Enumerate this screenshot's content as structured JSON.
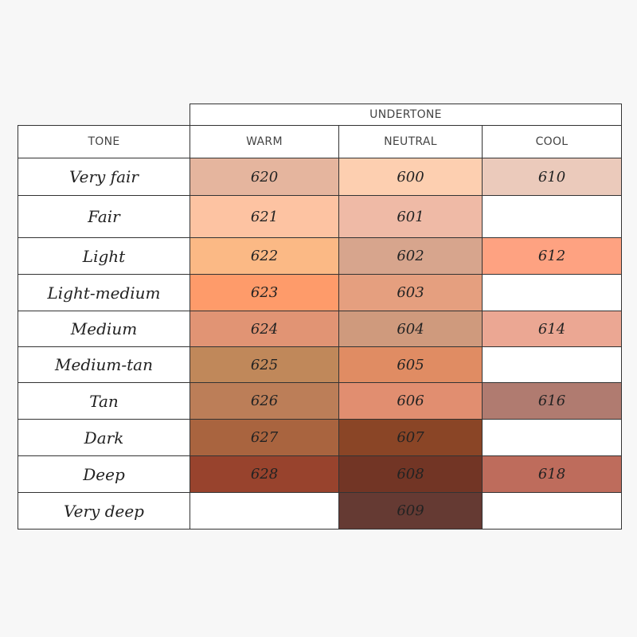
{
  "table": {
    "group_header": "UNDERTONE",
    "columns": [
      "TONE",
      "WARM",
      "NEUTRAL",
      "COOL"
    ],
    "rows": [
      {
        "tone": "Very fair",
        "cells": [
          {
            "code": "620",
            "color": "#e5b59e"
          },
          {
            "code": "600",
            "color": "#fdcfb0"
          },
          {
            "code": "610",
            "color": "#ebcabb"
          }
        ]
      },
      {
        "tone": "Fair",
        "cells": [
          {
            "code": "621",
            "color": "#fdc3a2"
          },
          {
            "code": "601",
            "color": "#efbaa6"
          },
          null
        ]
      },
      {
        "tone": "Light",
        "cells": [
          {
            "code": "622",
            "color": "#fbb985"
          },
          {
            "code": "602",
            "color": "#d7a58d"
          },
          {
            "code": "612",
            "color": "#fea281"
          }
        ]
      },
      {
        "tone": "Light-medium",
        "cells": [
          {
            "code": "623",
            "color": "#fe9b6a"
          },
          {
            "code": "603",
            "color": "#e59f7f"
          },
          null
        ]
      },
      {
        "tone": "Medium",
        "cells": [
          {
            "code": "624",
            "color": "#e19474"
          },
          {
            "code": "604",
            "color": "#cf9a7d"
          },
          {
            "code": "614",
            "color": "#eba793"
          }
        ]
      },
      {
        "tone": "Medium-tan",
        "cells": [
          {
            "code": "625",
            "color": "#c0885a"
          },
          {
            "code": "605",
            "color": "#e08c63"
          },
          null
        ]
      },
      {
        "tone": "Tan",
        "cells": [
          {
            "code": "626",
            "color": "#bc7e58"
          },
          {
            "code": "606",
            "color": "#e18e70"
          },
          {
            "code": "616",
            "color": "#b07b70"
          }
        ]
      },
      {
        "tone": "Dark",
        "cells": [
          {
            "code": "627",
            "color": "#a9643f"
          },
          {
            "code": "607",
            "color": "#8a4526"
          },
          null
        ]
      },
      {
        "tone": "Deep",
        "cells": [
          {
            "code": "628",
            "color": "#98432d"
          },
          {
            "code": "608",
            "color": "#723525"
          },
          {
            "code": "618",
            "color": "#be6c5c"
          }
        ]
      },
      {
        "tone": "Very deep",
        "cells": [
          null,
          {
            "code": "609",
            "color": "#653a33"
          },
          null
        ]
      }
    ]
  }
}
